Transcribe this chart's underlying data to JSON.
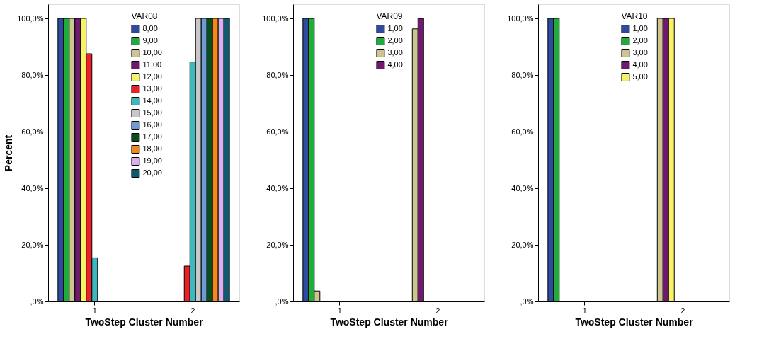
{
  "chart_data": [
    {
      "type": "bar",
      "ylabel": "Percent",
      "xlabel": "TwoStep Cluster Number",
      "legend_title": "VAR08",
      "legend": "top",
      "grid": false,
      "categories": [
        "1",
        "2"
      ],
      "ylim": [
        0,
        105
      ],
      "yticks": [
        {
          "value": 0,
          "label": ",0%"
        },
        {
          "value": 20,
          "label": "20,0%"
        },
        {
          "value": 40,
          "label": "40,0%"
        },
        {
          "value": 60,
          "label": "60,0%"
        },
        {
          "value": 80,
          "label": "80,0%"
        },
        {
          "value": 100,
          "label": "100,0%"
        }
      ],
      "series": [
        {
          "name": "8,00",
          "color": "#2d4ba0",
          "values": [
            100,
            null
          ]
        },
        {
          "name": "9,00",
          "color": "#1fad3a",
          "values": [
            100,
            null
          ]
        },
        {
          "name": "10,00",
          "color": "#cbc58f",
          "values": [
            100,
            null
          ]
        },
        {
          "name": "11,00",
          "color": "#6e1a6e",
          "values": [
            100,
            null
          ]
        },
        {
          "name": "12,00",
          "color": "#f8f266",
          "values": [
            100,
            null
          ]
        },
        {
          "name": "13,00",
          "color": "#ed2027",
          "values": [
            87.5,
            12.5
          ]
        },
        {
          "name": "14,00",
          "color": "#3db8bf",
          "values": [
            15.4,
            84.6
          ]
        },
        {
          "name": "15,00",
          "color": "#c8c8c8",
          "values": [
            null,
            100
          ]
        },
        {
          "name": "16,00",
          "color": "#6f9ad2",
          "values": [
            null,
            100
          ]
        },
        {
          "name": "17,00",
          "color": "#074d1d",
          "values": [
            null,
            100
          ]
        },
        {
          "name": "18,00",
          "color": "#f5881a",
          "values": [
            null,
            100
          ]
        },
        {
          "name": "19,00",
          "color": "#d8b0ee",
          "values": [
            null,
            100
          ]
        },
        {
          "name": "20,00",
          "color": "#0f5a6e",
          "values": [
            null,
            100
          ]
        }
      ]
    },
    {
      "type": "bar",
      "xlabel": "TwoStep Cluster Number",
      "legend_title": "VAR09",
      "legend": "top",
      "grid": false,
      "categories": [
        "1",
        "2"
      ],
      "ylim": [
        0,
        105
      ],
      "yticks": [
        {
          "value": 0,
          "label": ",0%"
        },
        {
          "value": 20,
          "label": "20,0%"
        },
        {
          "value": 40,
          "label": "40,0%"
        },
        {
          "value": 60,
          "label": "60,0%"
        },
        {
          "value": 80,
          "label": "80,0%"
        },
        {
          "value": 100,
          "label": "100,0%"
        }
      ],
      "series": [
        {
          "name": "1,00",
          "color": "#2d4ba0",
          "values": [
            100,
            null
          ]
        },
        {
          "name": "2,00",
          "color": "#1fad3a",
          "values": [
            100,
            null
          ]
        },
        {
          "name": "3,00",
          "color": "#cbc58f",
          "values": [
            3.7,
            96.3
          ]
        },
        {
          "name": "4,00",
          "color": "#6e1a6e",
          "values": [
            null,
            100
          ]
        }
      ]
    },
    {
      "type": "bar",
      "xlabel": "TwoStep Cluster Number",
      "legend_title": "VAR10",
      "legend": "top",
      "grid": false,
      "categories": [
        "1",
        "2"
      ],
      "ylim": [
        0,
        105
      ],
      "yticks": [
        {
          "value": 0,
          "label": ",0%"
        },
        {
          "value": 20,
          "label": "20,0%"
        },
        {
          "value": 40,
          "label": "40,0%"
        },
        {
          "value": 60,
          "label": "60,0%"
        },
        {
          "value": 80,
          "label": "80,0%"
        },
        {
          "value": 100,
          "label": "100,0%"
        }
      ],
      "series": [
        {
          "name": "1,00",
          "color": "#2d4ba0",
          "values": [
            100,
            null
          ]
        },
        {
          "name": "2,00",
          "color": "#1fad3a",
          "values": [
            100,
            null
          ]
        },
        {
          "name": "3,00",
          "color": "#cbc58f",
          "values": [
            null,
            100
          ]
        },
        {
          "name": "4,00",
          "color": "#6e1a6e",
          "values": [
            null,
            100
          ]
        },
        {
          "name": "5,00",
          "color": "#f8f266",
          "values": [
            null,
            100
          ]
        }
      ]
    }
  ]
}
